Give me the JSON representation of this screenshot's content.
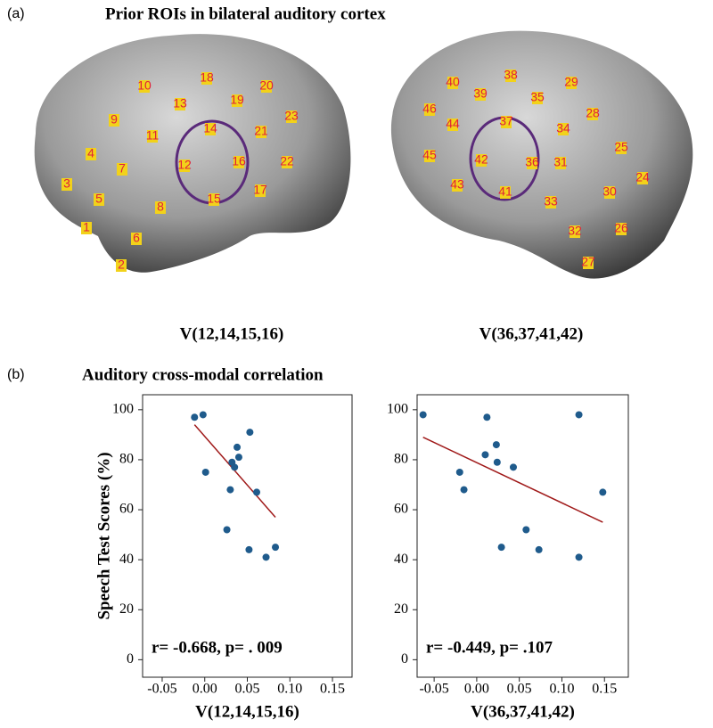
{
  "panel_a": {
    "label": "(a)",
    "title": "Prior ROIs in bilateral auditory cortex",
    "captions": [
      "V(12,14,15,16)",
      "V(36,37,41,42)"
    ],
    "rois": [
      "10",
      "18",
      "20",
      "13",
      "19",
      "23",
      "9",
      "11",
      "14",
      "21",
      "4",
      "7",
      "12",
      "16",
      "22",
      "3",
      "5",
      "8",
      "15",
      "17",
      "1",
      "6",
      "2",
      "40",
      "38",
      "29",
      "39",
      "35",
      "46",
      "44",
      "37",
      "28",
      "34",
      "25",
      "45",
      "42",
      "36",
      "31",
      "24",
      "43",
      "41",
      "33",
      "30",
      "32",
      "26",
      "27"
    ]
  },
  "panel_b": {
    "label": "(b)",
    "title": "Auditory cross-modal correlation"
  },
  "chart_data": [
    {
      "type": "scatter",
      "y_label": "Speech Test Scores (%)",
      "x_label": "V(12,14,15,16)",
      "annotation": "r= -0.668, p= . 009",
      "x": [
        -0.012,
        -0.002,
        0.001,
        0.038,
        0.04,
        0.032,
        0.035,
        0.053,
        0.03,
        0.061,
        0.026,
        0.052,
        0.072,
        0.083
      ],
      "values": [
        97,
        98,
        75,
        85,
        81,
        79,
        77,
        91,
        68,
        67,
        52,
        44,
        41,
        45
      ],
      "color": "#1f5b8c",
      "fit": {
        "x": [
          -0.012,
          0.083
        ],
        "y": [
          94,
          57
        ],
        "color": "#a01a1a"
      },
      "xlim": [
        -0.073,
        0.173
      ],
      "ylim": [
        -7,
        106
      ],
      "xticks": [
        -0.05,
        {
          "value": 0,
          "label": "0.00"
        },
        0.05,
        {
          "value": 0.1,
          "label": "0.10"
        },
        0.15
      ],
      "yticks": [
        0,
        20,
        40,
        60,
        80,
        100
      ]
    },
    {
      "type": "scatter",
      "x_label": "V(36,37,41,42)",
      "annotation": "r= -0.449, p= .107",
      "x": [
        -0.063,
        -0.02,
        -0.015,
        0.012,
        0.01,
        0.024,
        0.023,
        0.043,
        0.029,
        0.058,
        0.073,
        0.12,
        0.148,
        0.12
      ],
      "values": [
        98,
        75,
        68,
        97,
        82,
        79,
        86,
        77,
        45,
        52,
        44,
        98,
        67,
        41
      ],
      "color": "#1f5b8c",
      "fit": {
        "x": [
          -0.063,
          0.148
        ],
        "y": [
          89,
          55
        ],
        "color": "#a01a1a"
      },
      "xlim": [
        -0.07,
        0.178
      ],
      "ylim": [
        -7,
        106
      ],
      "xticks": [
        -0.05,
        {
          "value": 0,
          "label": "0.00"
        },
        0.05,
        {
          "value": 0.1,
          "label": "0.10"
        },
        0.15
      ],
      "yticks": [
        0,
        20,
        40,
        60,
        80,
        100
      ]
    }
  ]
}
